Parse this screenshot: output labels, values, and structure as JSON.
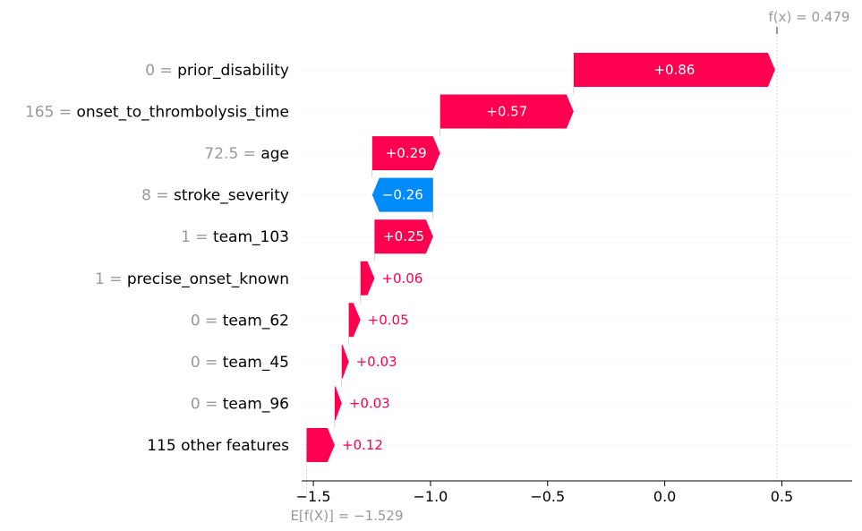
{
  "chart_data": {
    "type": "waterfall",
    "base_value": -1.529,
    "base_label": "E[f(X)] = −1.529",
    "output_value": 0.479,
    "output_label": "f(x) = 0.479",
    "xlim": [
      -1.55,
      0.8
    ],
    "xticks": [
      -1.5,
      -1.0,
      -0.5,
      0.0,
      0.5
    ],
    "xtick_labels": [
      "−1.5",
      "−1.0",
      "−0.5",
      "0.0",
      "0.5"
    ],
    "colors": {
      "positive": "#ff0051",
      "negative": "#008bfb",
      "grid": "#cccccc",
      "muted": "#999999",
      "text": "#000000"
    },
    "features": [
      {
        "value": "0",
        "name": "prior_disability",
        "contribution": 0.86,
        "label": "+0.86"
      },
      {
        "value": "165",
        "name": "onset_to_thrombolysis_time",
        "contribution": 0.57,
        "label": "+0.57"
      },
      {
        "value": "72.5",
        "name": "age",
        "contribution": 0.29,
        "label": "+0.29"
      },
      {
        "value": "8",
        "name": "stroke_severity",
        "contribution": -0.26,
        "label": "−0.26"
      },
      {
        "value": "1",
        "name": "team_103",
        "contribution": 0.25,
        "label": "+0.25"
      },
      {
        "value": "1",
        "name": "precise_onset_known",
        "contribution": 0.06,
        "label": "+0.06"
      },
      {
        "value": "0",
        "name": "team_62",
        "contribution": 0.05,
        "label": "+0.05"
      },
      {
        "value": "0",
        "name": "team_45",
        "contribution": 0.03,
        "label": "+0.03"
      },
      {
        "value": "0",
        "name": "team_96",
        "contribution": 0.03,
        "label": "+0.03"
      },
      {
        "value": "",
        "name": "115 other features",
        "contribution": 0.12,
        "label": "+0.12"
      }
    ]
  }
}
